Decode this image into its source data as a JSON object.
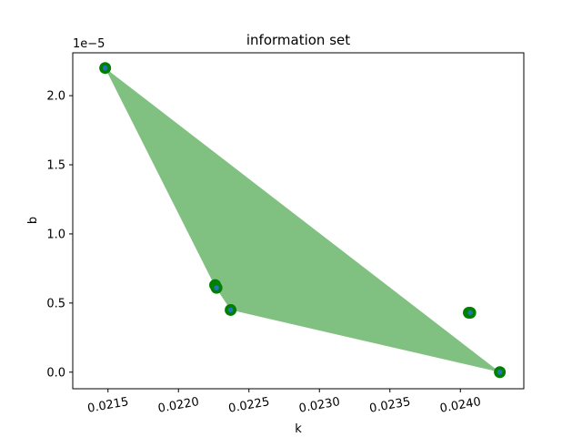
{
  "chart_data": {
    "type": "scatter",
    "title": "information set",
    "xlabel": "k",
    "ylabel": "b",
    "y_offset_label": "1e−5",
    "y_scale": 1e-05,
    "xlim": [
      0.02125,
      0.02445
    ],
    "ylim": [
      -0.12,
      2.31
    ],
    "xticks": [
      0.0215,
      0.022,
      0.0225,
      0.023,
      0.0235,
      0.024
    ],
    "xtick_labels": [
      "0.0215",
      "0.0220",
      "0.0225",
      "0.0230",
      "0.0235",
      "0.0240"
    ],
    "yticks": [
      0.0,
      0.5,
      1.0,
      1.5,
      2.0
    ],
    "ytick_labels": [
      "0.0",
      "0.5",
      "1.0",
      "1.5",
      "2.0"
    ],
    "grid": false,
    "legend": "none",
    "colors": {
      "fill": "#80c080",
      "marker_outer": "#008000",
      "marker_inner": "#1f77b4"
    },
    "hull": [
      {
        "x": 0.02148,
        "y": 2.2
      },
      {
        "x": 0.02428,
        "y": 0.0
      },
      {
        "x": 0.02237,
        "y": 0.45
      },
      {
        "x": 0.02226,
        "y": 0.62
      }
    ],
    "points": [
      {
        "x": 0.02148,
        "y": 2.2
      },
      {
        "x": 0.02226,
        "y": 0.63
      },
      {
        "x": 0.02227,
        "y": 0.61
      },
      {
        "x": 0.02237,
        "y": 0.45
      },
      {
        "x": 0.02406,
        "y": 0.43
      },
      {
        "x": 0.02407,
        "y": 0.43
      },
      {
        "x": 0.02428,
        "y": 0.0
      }
    ]
  }
}
